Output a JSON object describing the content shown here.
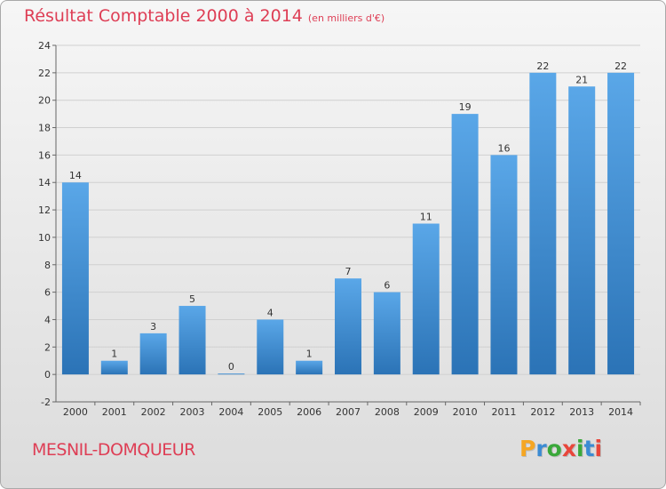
{
  "header": {
    "title": "Résultat Comptable 2000 à 2014",
    "subtitle": "(en milliers d'€)"
  },
  "footer": {
    "commune": "MESNIL-DOMQUEUR",
    "logo": "Proxiti",
    "logo_colors": [
      "#f5a623",
      "#3b8bd3",
      "#3aa83a",
      "#e8463b",
      "#3aa83a",
      "#3b8bd3",
      "#e8463b"
    ]
  },
  "colors": {
    "title": "#de3e55",
    "bar_light": "#5aa7e8",
    "bar_dark": "#2b73b6"
  },
  "chart_data": {
    "type": "bar",
    "title": "Résultat Comptable 2000 à 2014",
    "xlabel": "",
    "ylabel": "",
    "categories": [
      "2000",
      "2001",
      "2002",
      "2003",
      "2004",
      "2005",
      "2006",
      "2007",
      "2008",
      "2009",
      "2010",
      "2011",
      "2012",
      "2013",
      "2014"
    ],
    "values": [
      14,
      1,
      3,
      5,
      0,
      4,
      1,
      7,
      6,
      11,
      19,
      16,
      22,
      21,
      22
    ],
    "ylim": [
      -2,
      24
    ],
    "yticks": [
      -2,
      0,
      2,
      4,
      6,
      8,
      10,
      12,
      14,
      16,
      18,
      20,
      22,
      24
    ],
    "grid": true,
    "data_labels": true
  }
}
